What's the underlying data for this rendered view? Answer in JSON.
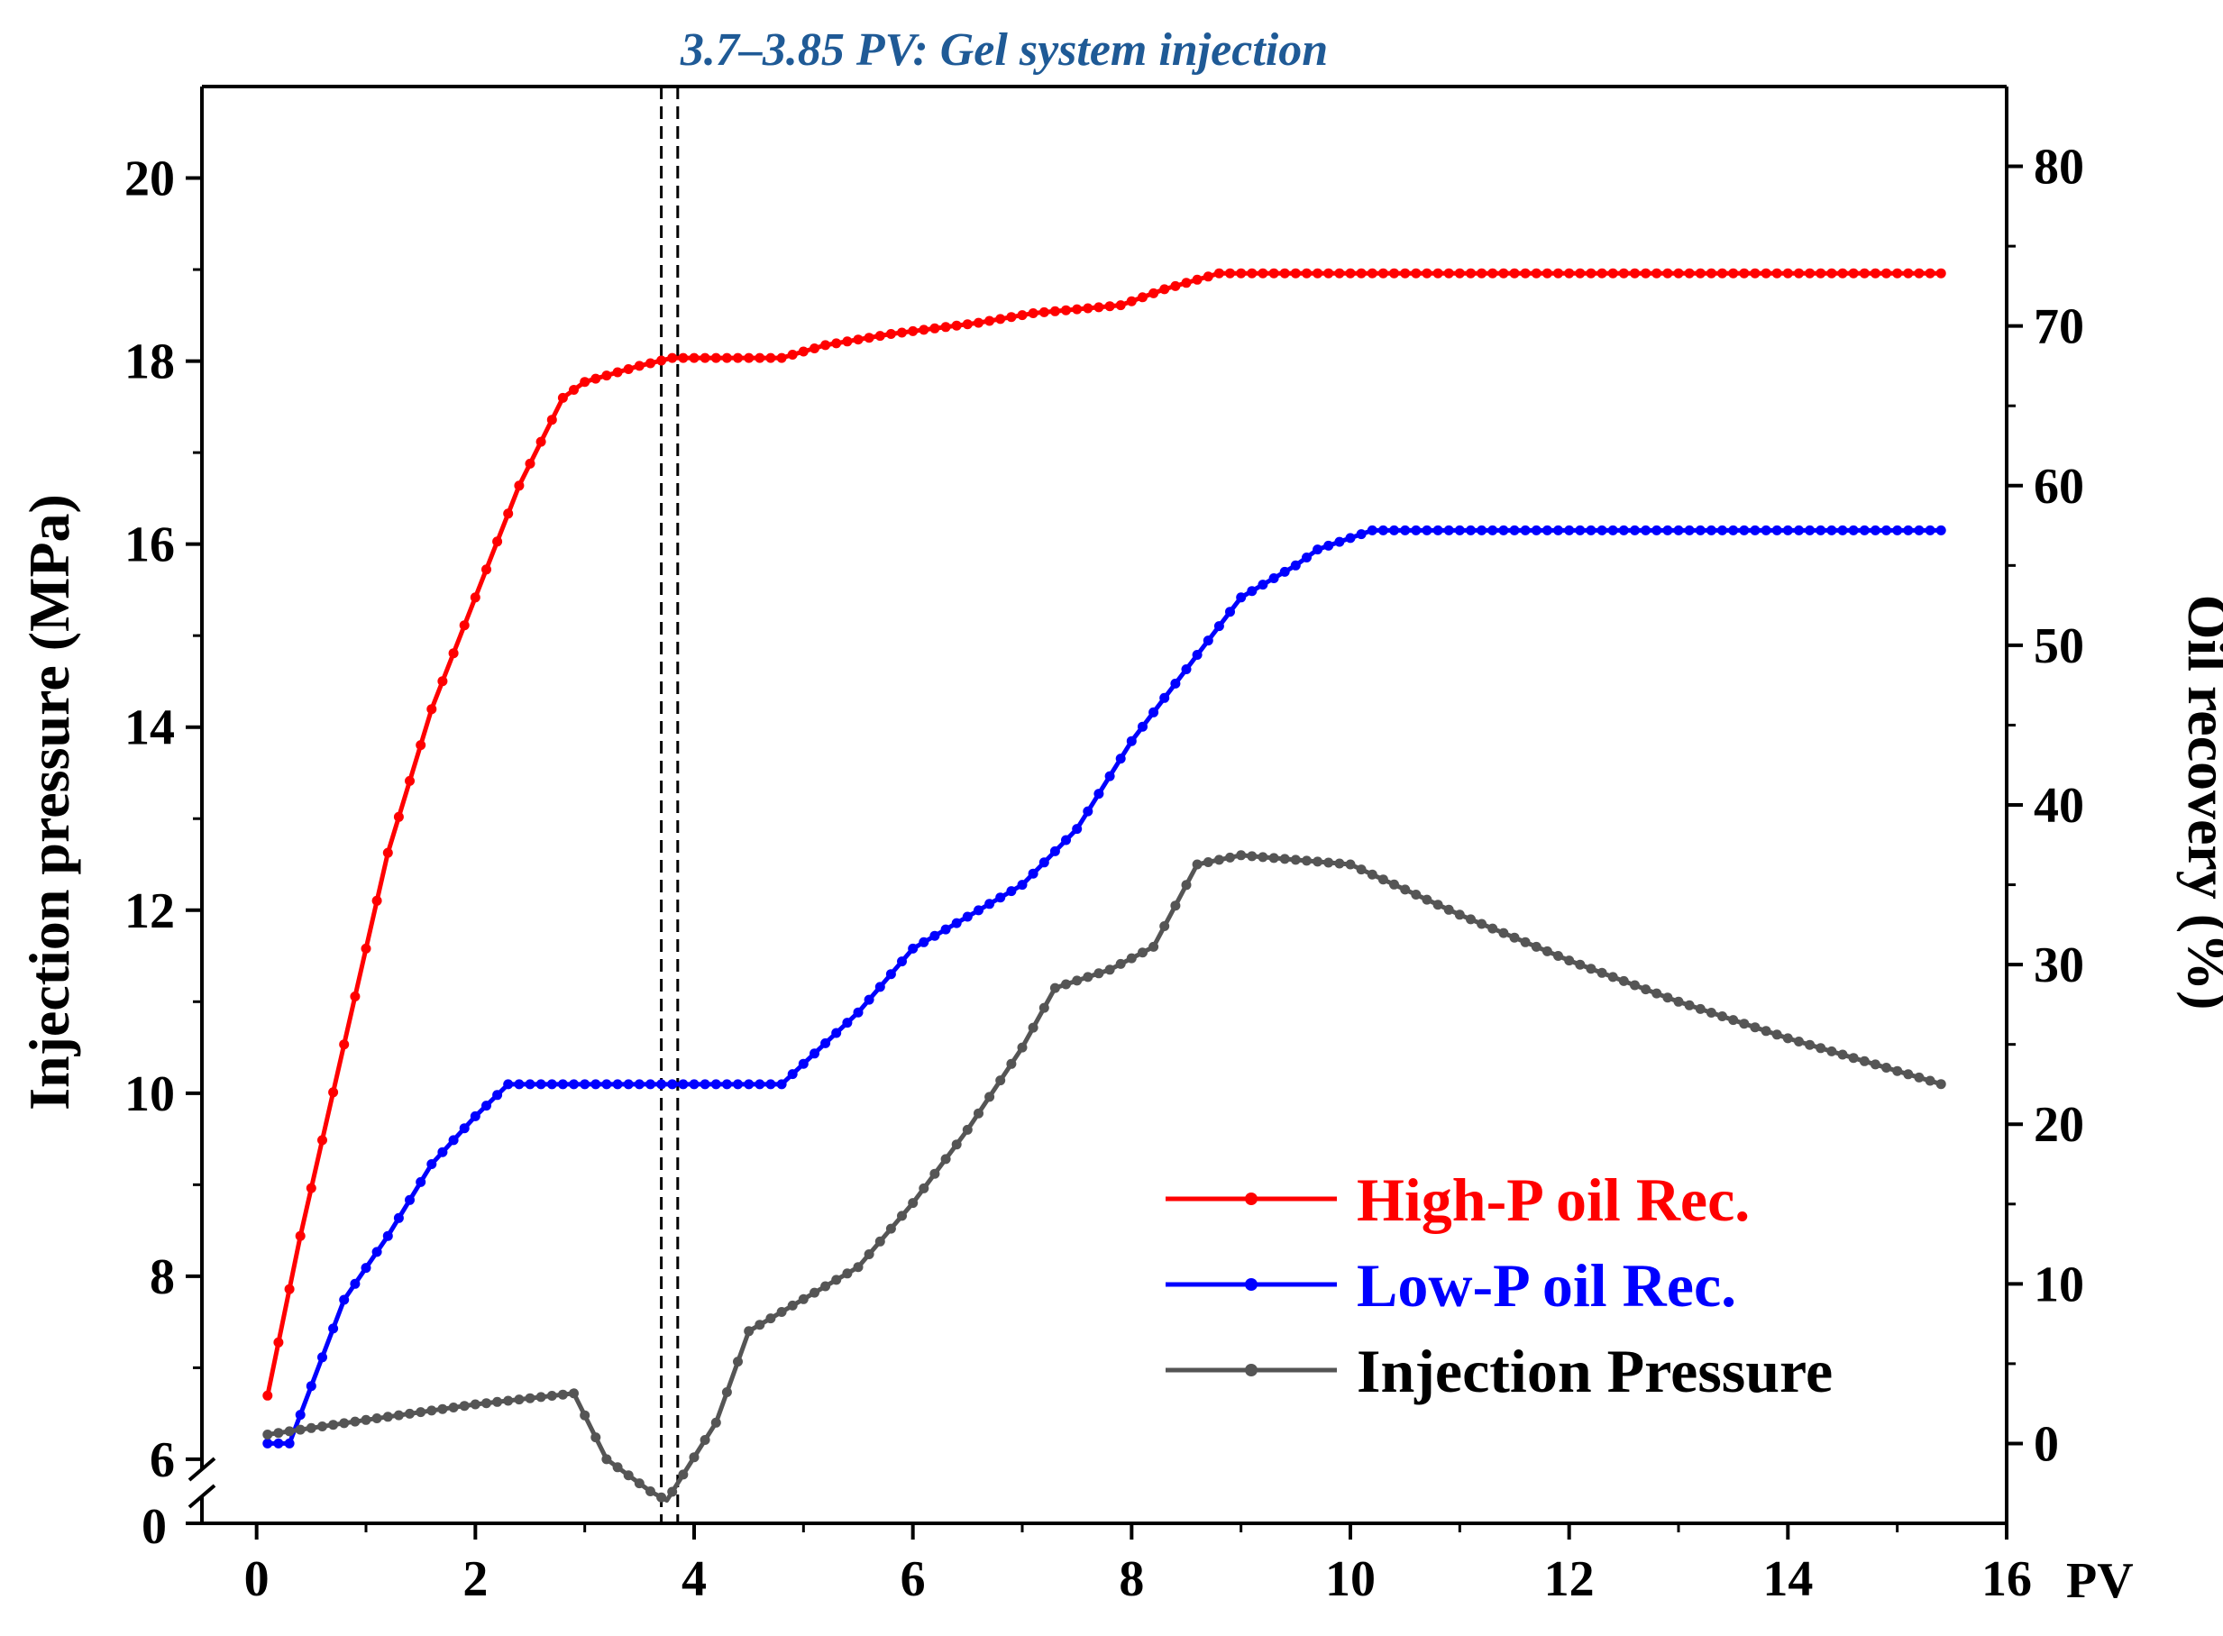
{
  "chart_data": {
    "type": "line",
    "annotation": "3.7–3.85 PV: Gel system injection",
    "annotation_color": "#1f5a96",
    "gel_lines_x": [
      3.7,
      3.85
    ],
    "x_axis": {
      "label": "PV",
      "range": [
        -0.5,
        16
      ],
      "ticks": [
        0,
        2,
        4,
        6,
        8,
        10,
        12,
        14,
        16
      ],
      "tick_labels": [
        "0",
        "2",
        "4",
        "6",
        "8",
        "10",
        "12",
        "14",
        "16"
      ]
    },
    "y_left": {
      "label": "Injection pressure (MPa)",
      "range": [
        5.3,
        21
      ],
      "ticks": [
        6,
        8,
        10,
        12,
        14,
        16,
        18,
        20
      ],
      "tick_labels": [
        "6",
        "8",
        "10",
        "12",
        "14",
        "16",
        "18",
        "20"
      ],
      "break_label": "0"
    },
    "y_right": {
      "label": "Oil recovery (%)",
      "range": [
        -5,
        85
      ],
      "ticks": [
        0,
        10,
        20,
        30,
        40,
        50,
        60,
        70,
        80
      ],
      "tick_labels": [
        "0",
        "10",
        "20",
        "30",
        "40",
        "50",
        "60",
        "70",
        "80"
      ]
    },
    "grid": false,
    "legend_position": "bottom-right",
    "series": [
      {
        "name": "High-P oil Rec.",
        "axis": "right",
        "color": "#ff0000",
        "points": [
          [
            0.1,
            3
          ],
          [
            0.4,
            13
          ],
          [
            0.8,
            25
          ],
          [
            1.2,
            37
          ],
          [
            1.6,
            46
          ],
          [
            2.0,
            53
          ],
          [
            2.4,
            60
          ],
          [
            2.8,
            65.5
          ],
          [
            3.0,
            66.5
          ],
          [
            3.5,
            67.5
          ],
          [
            3.8,
            68
          ],
          [
            4.8,
            68
          ],
          [
            5.2,
            68.8
          ],
          [
            5.8,
            69.5
          ],
          [
            6.6,
            70.2
          ],
          [
            7.1,
            70.8
          ],
          [
            7.9,
            71.3
          ],
          [
            8.3,
            72.3
          ],
          [
            8.8,
            73.3
          ],
          [
            15.4,
            73.3
          ]
        ]
      },
      {
        "name": "Low-P oil Rec.",
        "axis": "right",
        "color": "#0000ff",
        "points": [
          [
            0.1,
            0
          ],
          [
            0.3,
            0
          ],
          [
            0.8,
            9
          ],
          [
            1.2,
            13
          ],
          [
            1.6,
            17.5
          ],
          [
            2.0,
            20.5
          ],
          [
            2.3,
            22.5
          ],
          [
            4.8,
            22.5
          ],
          [
            5.5,
            27
          ],
          [
            6.0,
            31
          ],
          [
            6.5,
            33
          ],
          [
            7.0,
            35
          ],
          [
            7.5,
            38.5
          ],
          [
            8.0,
            44
          ],
          [
            8.5,
            48.5
          ],
          [
            9.0,
            53
          ],
          [
            9.5,
            55
          ],
          [
            9.7,
            56
          ],
          [
            10.2,
            57.2
          ],
          [
            15.4,
            57.2
          ]
        ]
      },
      {
        "name": "Injection Pressure",
        "axis": "left",
        "color": "#555555",
        "points": [
          [
            0.1,
            6.27
          ],
          [
            1.0,
            6.43
          ],
          [
            2.0,
            6.6
          ],
          [
            2.9,
            6.72
          ],
          [
            3.2,
            6.0
          ],
          [
            3.6,
            5.65
          ],
          [
            3.75,
            5.55
          ],
          [
            4.2,
            6.4
          ],
          [
            4.5,
            7.4
          ],
          [
            5.0,
            7.75
          ],
          [
            5.5,
            8.1
          ],
          [
            6.0,
            8.8
          ],
          [
            6.5,
            9.6
          ],
          [
            7.0,
            10.5
          ],
          [
            7.3,
            11.15
          ],
          [
            7.8,
            11.35
          ],
          [
            8.2,
            11.6
          ],
          [
            8.6,
            12.5
          ],
          [
            9.0,
            12.6
          ],
          [
            9.5,
            12.55
          ],
          [
            10.0,
            12.5
          ],
          [
            11.0,
            11.95
          ],
          [
            12.0,
            11.45
          ],
          [
            13.0,
            11.0
          ],
          [
            14.0,
            10.6
          ],
          [
            15.4,
            10.1
          ]
        ]
      }
    ]
  }
}
